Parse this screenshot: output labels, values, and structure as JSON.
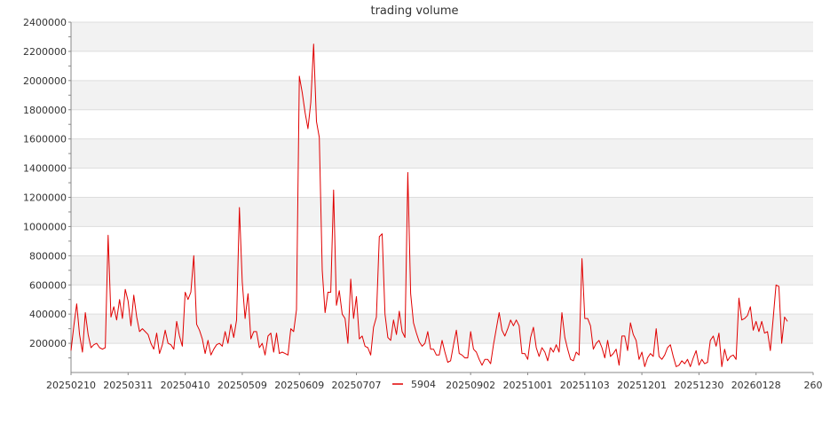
{
  "chart_data": {
    "type": "line",
    "title": "trading volume",
    "xlabel": "",
    "ylabel": "",
    "ylim": [
      0,
      2400000
    ],
    "y_ticks": [
      200000,
      400000,
      600000,
      800000,
      1000000,
      1200000,
      1400000,
      1600000,
      1800000,
      2000000,
      2200000,
      2400000
    ],
    "x_tick_labels": [
      "20250210",
      "20250311",
      "20250410",
      "20250509",
      "20250609",
      "20250707",
      "20250902",
      "20251001",
      "20251103",
      "20251201",
      "20251230",
      "20260128",
      "260"
    ],
    "x_tick_index": [
      0,
      20,
      40,
      60,
      80,
      100,
      140,
      160,
      180,
      200,
      220,
      240,
      260
    ],
    "x_count": 260,
    "grid": "horizontal bands",
    "legend": {
      "position": "bottom-center"
    },
    "colors": {
      "series": "#e00000",
      "band": "#f2f2f2",
      "grid": "#dddddd",
      "axis": "#888888"
    },
    "series": [
      {
        "name": "5904",
        "values": [
          150000,
          320000,
          470000,
          260000,
          140000,
          410000,
          260000,
          170000,
          190000,
          200000,
          170000,
          160000,
          170000,
          940000,
          380000,
          450000,
          360000,
          500000,
          370000,
          570000,
          490000,
          320000,
          530000,
          380000,
          280000,
          300000,
          280000,
          260000,
          200000,
          160000,
          270000,
          130000,
          190000,
          290000,
          200000,
          190000,
          160000,
          350000,
          250000,
          180000,
          550000,
          500000,
          550000,
          800000,
          330000,
          290000,
          230000,
          130000,
          220000,
          120000,
          160000,
          190000,
          200000,
          180000,
          280000,
          200000,
          330000,
          240000,
          360000,
          1130000,
          620000,
          370000,
          540000,
          230000,
          280000,
          280000,
          170000,
          200000,
          120000,
          250000,
          270000,
          140000,
          270000,
          130000,
          140000,
          130000,
          120000,
          300000,
          280000,
          430000,
          2030000,
          1920000,
          1780000,
          1670000,
          1850000,
          2250000,
          1720000,
          1610000,
          700000,
          410000,
          550000,
          550000,
          1250000,
          460000,
          560000,
          400000,
          370000,
          200000,
          640000,
          370000,
          520000,
          230000,
          250000,
          180000,
          170000,
          120000,
          310000,
          380000,
          930000,
          950000,
          400000,
          240000,
          220000,
          360000,
          260000,
          420000,
          280000,
          240000,
          1370000,
          540000,
          340000,
          270000,
          210000,
          180000,
          200000,
          280000,
          160000,
          160000,
          120000,
          120000,
          220000,
          140000,
          70000,
          80000,
          190000,
          290000,
          130000,
          120000,
          100000,
          100000,
          280000,
          160000,
          140000,
          90000,
          50000,
          90000,
          90000,
          60000,
          190000,
          300000,
          410000,
          290000,
          250000,
          300000,
          360000,
          320000,
          360000,
          320000,
          130000,
          130000,
          90000,
          240000,
          310000,
          170000,
          110000,
          170000,
          140000,
          80000,
          170000,
          140000,
          190000,
          140000,
          410000,
          240000,
          160000,
          90000,
          80000,
          140000,
          120000,
          780000,
          370000,
          370000,
          320000,
          160000,
          200000,
          220000,
          170000,
          100000,
          220000,
          110000,
          130000,
          160000,
          50000,
          250000,
          250000,
          150000,
          340000,
          260000,
          220000,
          90000,
          140000,
          40000,
          100000,
          130000,
          110000,
          300000,
          110000,
          90000,
          120000,
          170000,
          190000,
          110000,
          40000,
          50000,
          80000,
          60000,
          90000,
          40000,
          100000,
          150000,
          50000,
          90000,
          60000,
          70000,
          220000,
          250000,
          180000,
          270000,
          40000,
          160000,
          80000,
          110000,
          120000,
          90000,
          510000,
          360000,
          370000,
          390000,
          450000,
          290000,
          350000,
          280000,
          350000,
          270000,
          280000,
          150000,
          370000,
          600000,
          590000,
          200000,
          380000,
          350000
        ]
      }
    ]
  }
}
